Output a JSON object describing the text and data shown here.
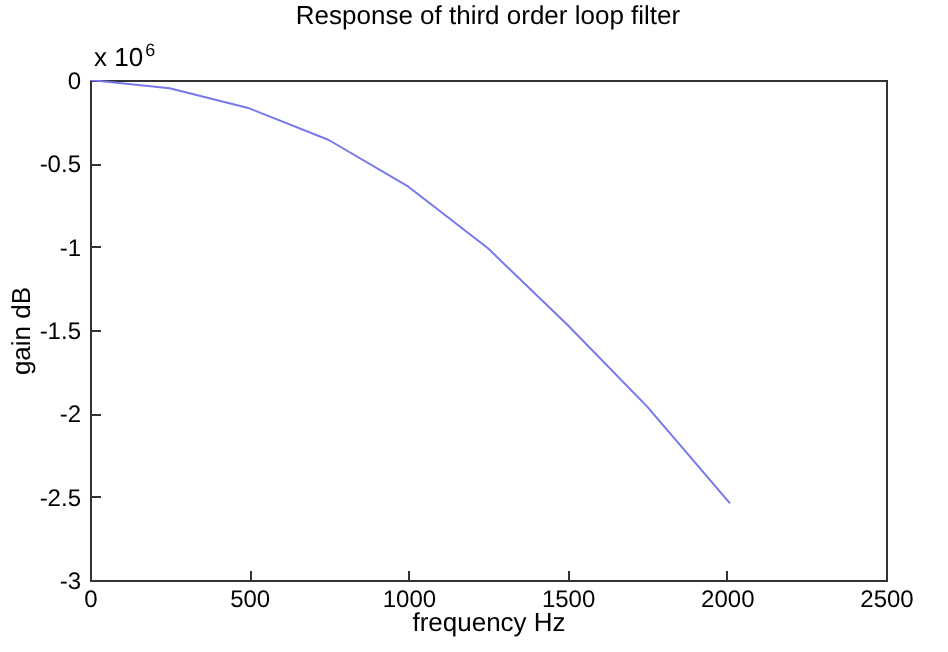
{
  "chart_data": {
    "type": "line",
    "title": "Response of third order loop filter",
    "xlabel": "frequency Hz",
    "ylabel": "gain dB",
    "annotations": [
      "x 10$^{6}$"
    ],
    "x": [
      0,
      250,
      500,
      750,
      1000,
      1250,
      1500,
      1750,
      2010
    ],
    "series": [
      {
        "color": "#7777ee",
        "values": [
          0,
          -0.05,
          -0.17,
          -0.36,
          -0.64,
          -1.01,
          -1.47,
          -1.96,
          -2.54
        ]
      }
    ],
    "xlim": [
      0,
      2500
    ],
    "xticks": [
      0,
      500,
      1000,
      1500,
      2000,
      2500
    ],
    "ylim": [
      -3,
      0
    ],
    "yticks": [
      -3,
      -2.5,
      -2,
      -1.5,
      -1,
      -0.5,
      0
    ],
    "grid": false,
    "legend": false,
    "marker": "none",
    "line_style": "solid"
  }
}
